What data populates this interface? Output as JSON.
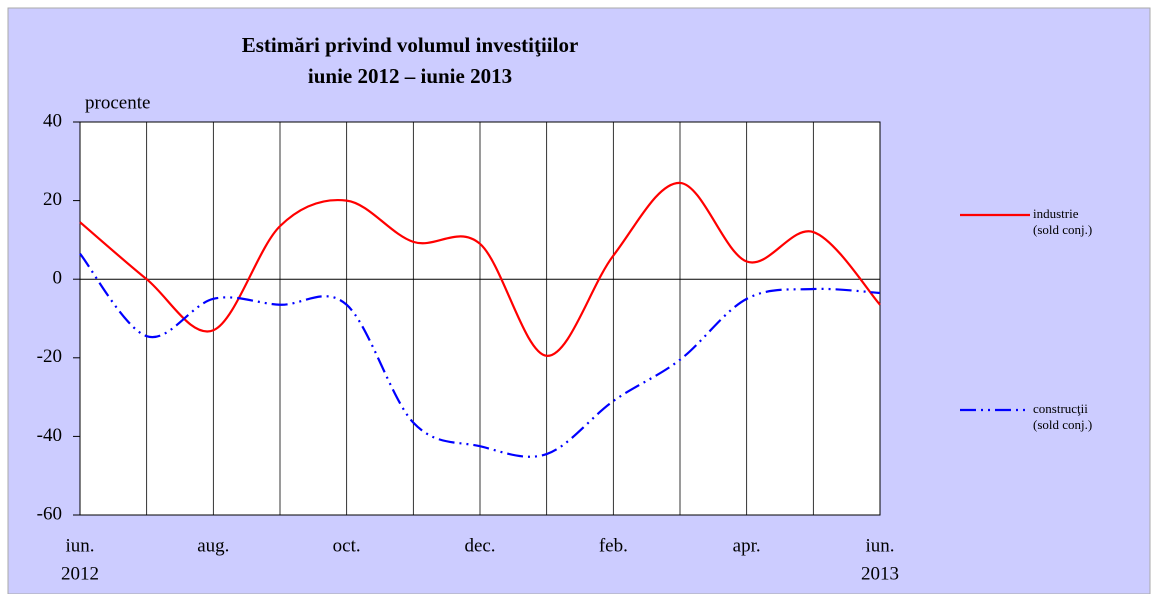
{
  "chart_data": {
    "type": "line",
    "title": "Estimări privind volumul investiţiilor",
    "subtitle": "iunie 2012 – iunie 2013",
    "y_label": "procente",
    "categories": [
      "iun.",
      null,
      "aug.",
      null,
      "oct.",
      null,
      "dec.",
      null,
      "feb.",
      null,
      "apr.",
      null,
      "iun."
    ],
    "category_years": [
      "2012",
      null,
      null,
      null,
      null,
      null,
      null,
      null,
      null,
      null,
      null,
      null,
      "2013"
    ],
    "ylim": [
      -60,
      40
    ],
    "yticks": [
      -60,
      -40,
      -20,
      0,
      20,
      40
    ],
    "series": [
      {
        "name": "industrie",
        "note": "(sold conj.)",
        "color": "#ff0000",
        "linestyle": "solid",
        "values": [
          14.5,
          0,
          -13,
          13.5,
          20,
          9.5,
          9,
          -19.5,
          6,
          24.5,
          4.5,
          12,
          -6.5
        ]
      },
      {
        "name": "construcţii",
        "note": "(sold conj.)",
        "color": "#0000ff",
        "linestyle": "dashdotdot",
        "values": [
          6.5,
          -14.5,
          -5,
          -6.5,
          -6.5,
          -36.5,
          -42.5,
          -44.5,
          -31,
          -20.5,
          -5,
          -2.5,
          -3.5
        ]
      }
    ]
  }
}
